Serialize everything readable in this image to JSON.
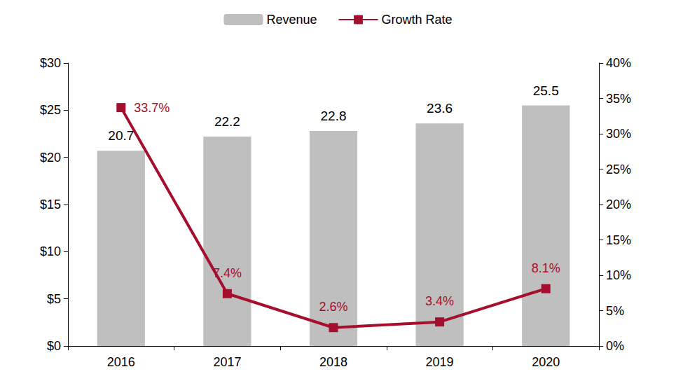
{
  "chart_data": {
    "type": "bar",
    "categories": [
      "2016",
      "2017",
      "2018",
      "2019",
      "2020"
    ],
    "series": [
      {
        "name": "Revenue",
        "type": "bar",
        "color": "#bfbfbf",
        "values": [
          20.7,
          22.2,
          22.8,
          23.6,
          25.5
        ]
      },
      {
        "name": "Growth Rate",
        "type": "line",
        "axis": "y2",
        "color": "#a50f2d",
        "marker": "square",
        "values": [
          33.7,
          7.4,
          2.6,
          3.4,
          8.1
        ],
        "value_labels": [
          "33.7%",
          "7.4%",
          "2.6%",
          "3.4%",
          "8.1%"
        ]
      }
    ],
    "ylim": [
      0,
      30
    ],
    "yticks": [
      {
        "value": 0,
        "label": "$0"
      },
      {
        "value": 5,
        "label": "$5"
      },
      {
        "value": 10,
        "label": "$10"
      },
      {
        "value": 15,
        "label": "$15"
      },
      {
        "value": 20,
        "label": "$20"
      },
      {
        "value": 25,
        "label": "$25"
      },
      {
        "value": 30,
        "label": "$30"
      }
    ],
    "y2lim": [
      0,
      40
    ],
    "y2ticks": [
      {
        "value": 0,
        "label": "0%"
      },
      {
        "value": 5,
        "label": "5%"
      },
      {
        "value": 10,
        "label": "10%"
      },
      {
        "value": 15,
        "label": "15%"
      },
      {
        "value": 20,
        "label": "20%"
      },
      {
        "value": 25,
        "label": "25%"
      },
      {
        "value": 30,
        "label": "30%"
      },
      {
        "value": 35,
        "label": "35%"
      },
      {
        "value": 40,
        "label": "40%"
      }
    ],
    "grid": false,
    "legend": "top",
    "data_labels": true
  }
}
